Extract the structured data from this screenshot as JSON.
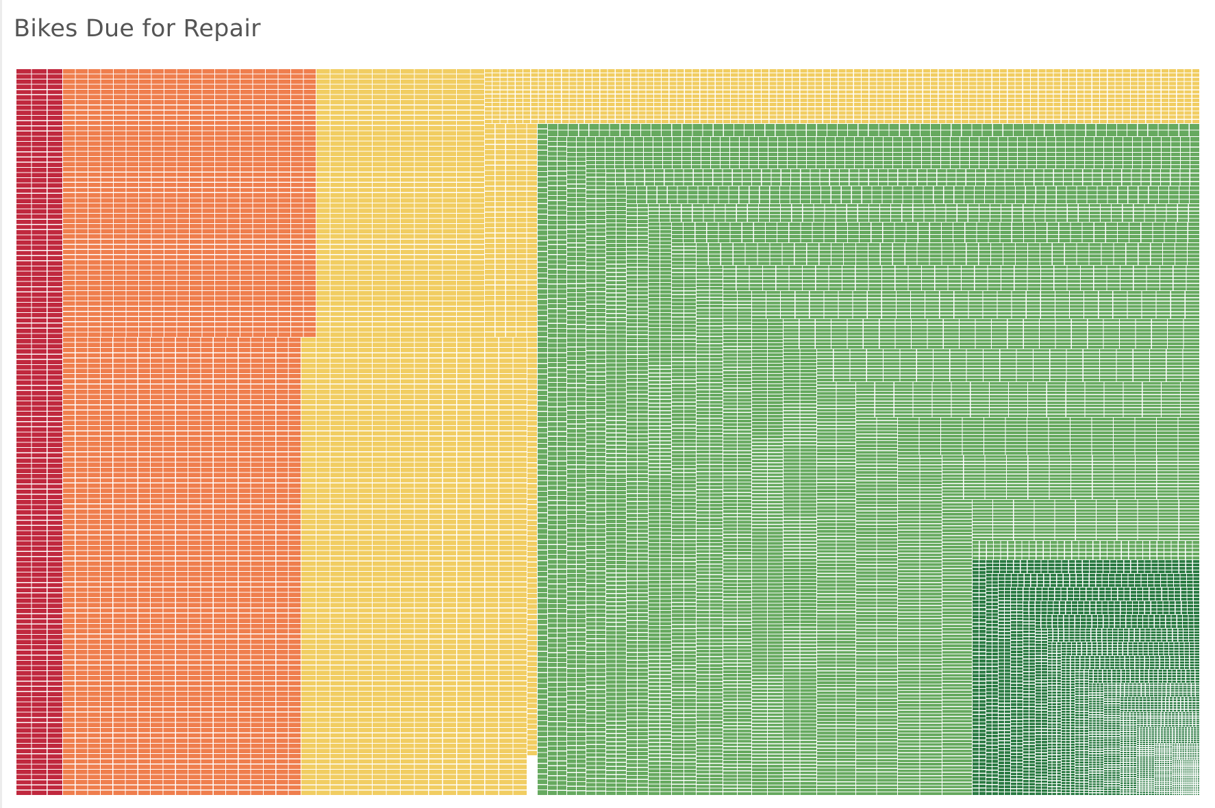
{
  "title": "Bikes Due for Repair",
  "chart_data": {
    "type": "treemap",
    "title": "Bikes Due for Repair",
    "mark": "one small rectangle per bike",
    "legend": "none",
    "grid": false,
    "categories": [
      {
        "id": "red",
        "color": "#c0283e"
      },
      {
        "id": "orange",
        "color": "#ef7e4d"
      },
      {
        "id": "yellow",
        "color": "#f1cd62"
      },
      {
        "id": "green",
        "color": "#66a95f"
      },
      {
        "id": "dark-green",
        "color": "#2a7a42"
      }
    ],
    "series": [
      {
        "category": "red",
        "approx_bikes": 240
      },
      {
        "category": "orange",
        "approx_bikes": 1700
      },
      {
        "category": "yellow",
        "approx_bikes": 2300
      },
      {
        "category": "green",
        "approx_bikes": 10000
      },
      {
        "category": "dark-green",
        "approx_bikes": 3000
      }
    ]
  }
}
